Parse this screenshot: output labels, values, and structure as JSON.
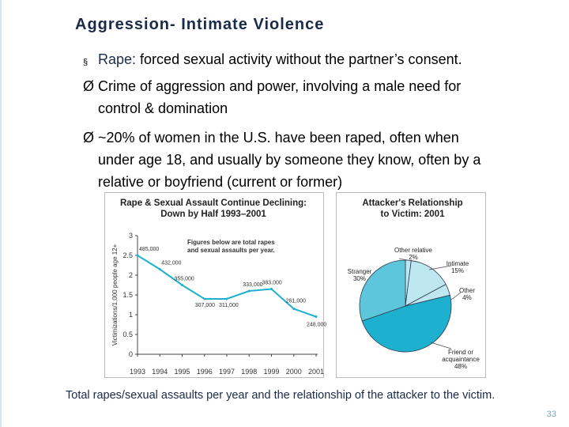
{
  "slide": {
    "title": "Aggression- Intimate Violence",
    "bullets": [
      {
        "marker": "§",
        "term": "Rape:",
        "text": " forced sexual activity without the partner’s consent."
      },
      {
        "marker": "Ø",
        "lines": [
          "Crime of aggression and power, involving a male need for",
          "control & domination"
        ]
      },
      {
        "marker": "Ø",
        "lines": [
          "~20% of women in the U.S. have been raped, often when",
          "under age 18, and usually by someone they know, often by a",
          "relative or boyfriend (current or former)"
        ]
      }
    ],
    "caption": "Total rapes/sexual assaults per year and the relationship of the attacker to the victim.",
    "page_number": "33",
    "colors": {
      "title": "#1a2a4a",
      "accent": "#1eb1cf",
      "light": "#bfe7f2",
      "dark_slice": "#5ec6dc"
    }
  },
  "chart_data": [
    {
      "type": "line",
      "title": "Rape & Sexual Assault Continue Declining:",
      "subtitle": "Down by Half 1993–2001",
      "ylabel": "Victimizations/1,000 people age 12+",
      "annotation": "Figures below are total rapes and sexual assaults per year.",
      "ylim": [
        0,
        3
      ],
      "yticks": [
        "0",
        "0.5",
        "1",
        "1.5",
        "2",
        "2.5",
        "3"
      ],
      "x": [
        "1993",
        "1994",
        "1995",
        "1996",
        "1997",
        "1998",
        "1999",
        "2000",
        "2001"
      ],
      "values": [
        2.5,
        2.15,
        1.75,
        1.4,
        1.4,
        1.6,
        1.65,
        1.15,
        0.95
      ],
      "point_labels": [
        "485,000",
        "432,000",
        "355,000",
        "307,000",
        "311,000",
        "333,000",
        "383,000",
        "261,000",
        "248,000"
      ]
    },
    {
      "type": "pie",
      "title": "Attacker's Relationship",
      "subtitle": "to Victim: 2001",
      "slices": [
        {
          "name": "Other relative",
          "value": 2
        },
        {
          "name": "Intimate",
          "value": 15
        },
        {
          "name": "Other",
          "value": 4
        },
        {
          "name": "Friend or acquaintance",
          "value": 48
        },
        {
          "name": "Stranger",
          "value": 30
        }
      ],
      "value_labels": [
        "2%",
        "15%",
        "4%",
        "48%",
        "30%"
      ],
      "label_lines": [
        [
          "Other relative"
        ],
        [
          "Intimate"
        ],
        [
          "Other"
        ],
        [
          "Friend or",
          "acquaintance"
        ],
        [
          "Stranger"
        ]
      ],
      "colors": [
        "#bfe7f2",
        "#bfe7f2",
        "#bfe7f2",
        "#1eb1cf",
        "#5ec6dc"
      ]
    }
  ]
}
